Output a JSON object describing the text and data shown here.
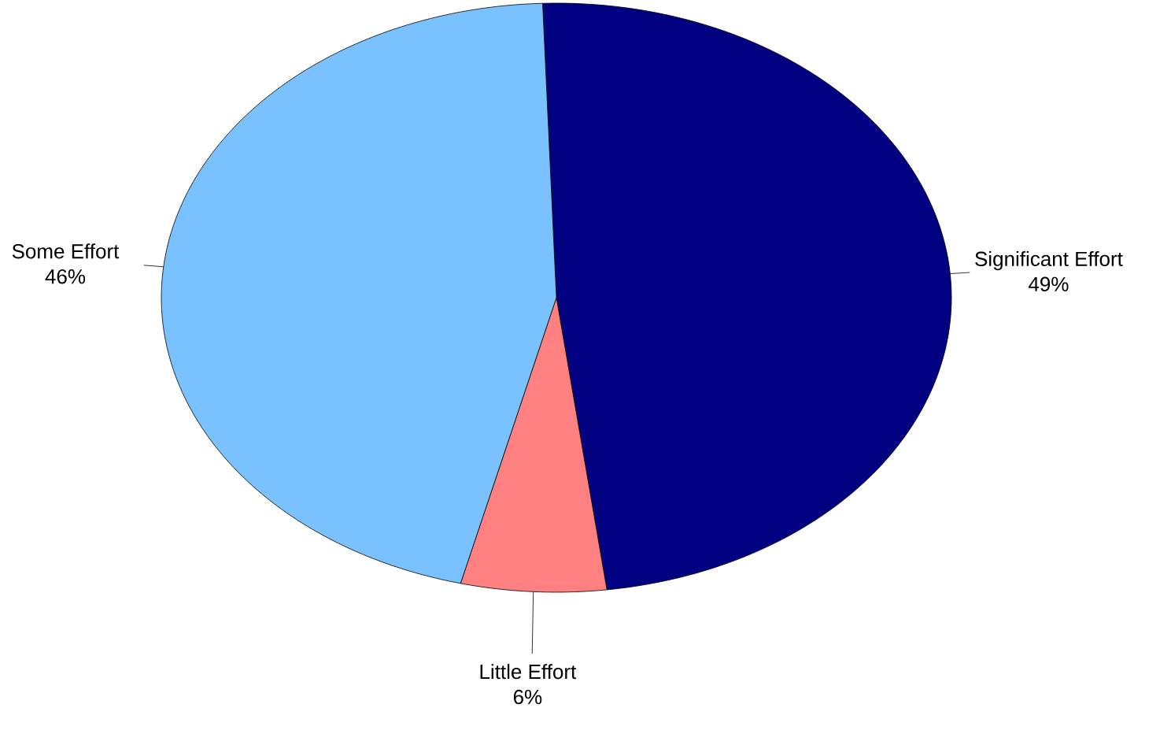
{
  "chart_data": {
    "type": "pie",
    "categories": [
      "Significant Effort",
      "Little Effort",
      "Some Effort"
    ],
    "values": [
      49,
      6,
      46
    ],
    "value_labels": [
      "49%",
      "6%",
      "46%"
    ],
    "colors": [
      "#000080",
      "#ff8080",
      "#7ac2ff"
    ]
  }
}
